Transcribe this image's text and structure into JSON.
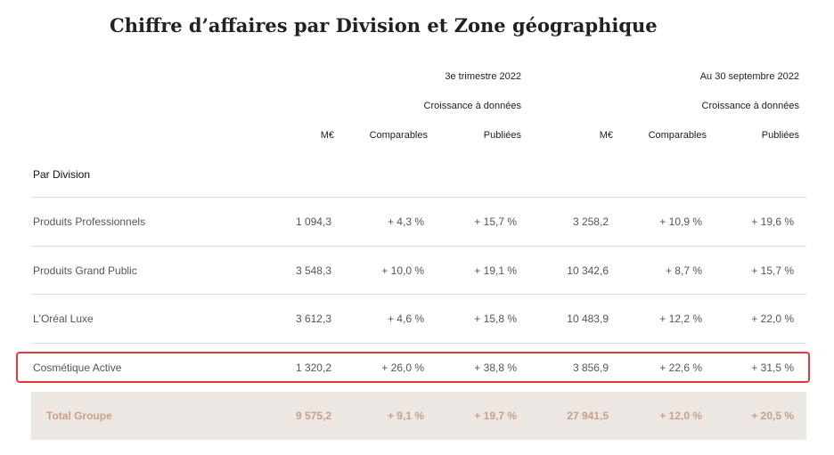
{
  "title": "Chiffre d’affaires par Division et Zone géographique",
  "periods": {
    "q3": {
      "label": "3e trimestre 2022",
      "growth": "Croissance à données",
      "m_eur": "M€",
      "comparables": "Comparables",
      "publiees": "Publiées"
    },
    "ytd": {
      "label": "Au 30 septembre 2022",
      "growth": "Croissance à données",
      "m_eur": "M€",
      "comparables": "Comparables",
      "publiees": "Publiées"
    }
  },
  "section": "Par Division",
  "rows": [
    {
      "name": "Produits Professionnels",
      "values": [
        "1 094,3",
        "+ 4,3 %",
        "+ 15,7 %",
        "3 258,2",
        "+ 10,9 %",
        "+ 19,6 %"
      ]
    },
    {
      "name": "Produits Grand Public",
      "values": [
        "3 548,3",
        "+ 10,0 %",
        "+ 19,1 %",
        "10 342,6",
        "+ 8,7 %",
        "+ 15,7 %"
      ]
    },
    {
      "name": "L'Oréal Luxe",
      "values": [
        "3 612,3",
        "+ 4,6 %",
        "+ 15,8 %",
        "10 483,9",
        "+ 12,2 %",
        "+ 22,0 %"
      ]
    },
    {
      "name": "Cosmétique Active",
      "values": [
        "1 320,2",
        "+ 26,0 %",
        "+ 38,8 %",
        "3 856,9",
        "+ 22,6 %",
        "+ 31,5 %"
      ]
    }
  ],
  "total": {
    "name": "Total Groupe",
    "values": [
      "9 575,2",
      "+ 9,1 %",
      "+ 19,7 %",
      "27 941,5",
      "+ 12,0 %",
      "+ 20,5 %"
    ]
  },
  "highlight_color": "#e53935",
  "total_text_color": "#c9a188"
}
